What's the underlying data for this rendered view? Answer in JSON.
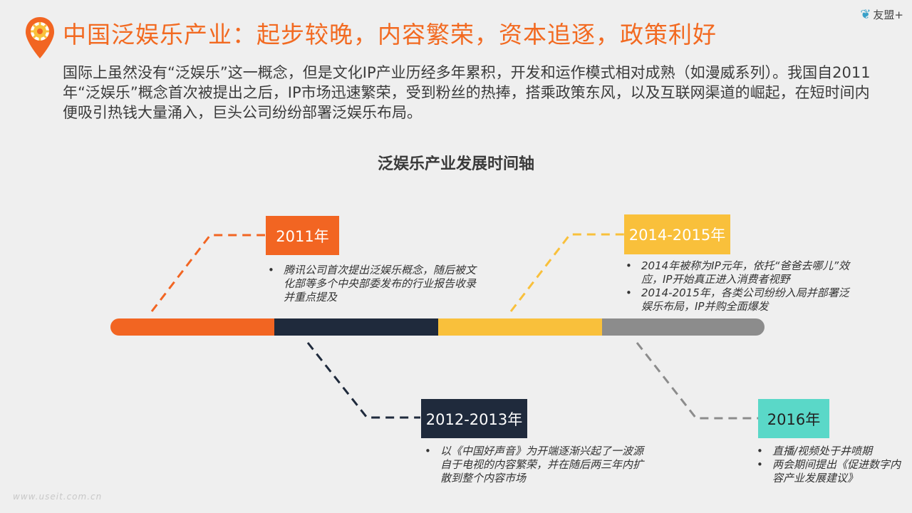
{
  "header": {
    "title": "中国泛娱乐产业：起步较晚，内容繁荣，资本追逐，政策利好",
    "logo_text": "友盟+",
    "pin_icon": "map-pin-gear-icon"
  },
  "intro": "国际上虽然没有“泛娱乐”这一概念，但是文化IP产业历经多年累积，开发和运作模式相对成熟（如漫威系列）。我国自2011年“泛娱乐”概念首次被提出之后，IP市场迅速繁荣，受到粉丝的热捧，搭乘政策东风，以及互联网渠道的崛起，在短时间内便吸引热钱大量涌入，巨头公司纷纷部署泛娱乐布局。",
  "timeline": {
    "title": "泛娱乐产业发展时间轴",
    "colors": [
      "#f26522",
      "#1f2a3c",
      "#f9c03b",
      "#8c8c8c",
      "#5ad8c8"
    ],
    "events": [
      {
        "label": "2011年",
        "notes": [
          "腾讯公司首次提出泛娱乐概念，随后被文化部等多个中央部委发布的行业报告收录并重点提及"
        ]
      },
      {
        "label": "2012-2013年",
        "notes": [
          "以《中国好声音》为开端逐渐兴起了一波源自于电视的内容繁荣，并在随后两三年内扩散到整个内容市场"
        ]
      },
      {
        "label": "2014-2015年",
        "notes": [
          "2014年被称为IP元年，依托“爸爸去哪儿”效应，IP开始真正进入消费者视野",
          "2014-2015年，各类公司纷纷入局并部署泛娱乐布局，IP并购全面爆发"
        ]
      },
      {
        "label": "2016年",
        "notes": [
          "直播/视频处于井喷期",
          "两会期间提出《促进数字内容产业发展建议》"
        ]
      }
    ]
  },
  "footer": {
    "watermark": "www.useit.com.cn"
  }
}
